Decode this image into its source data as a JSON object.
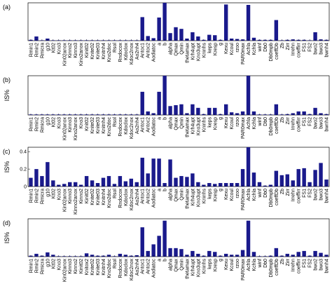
{
  "chart_data": [
    {
      "type": "bar",
      "panel_label": "(a)",
      "ylabel": "",
      "ylim": [
        0,
        0.9
      ],
      "yticks": [],
      "bar_color": "#1a1a8c",
      "categories": [
        "Rmin1",
        "Rmin2",
        "Rmicra",
        "g10",
        "Kt02",
        "Kno3",
        "Kinn02anox",
        "Kinno2",
        "Kinno3",
        "Kinit02anox",
        "Kinit02",
        "Knite02",
        "Knite03",
        "Knitnh4",
        "Kno2doc",
        "Rsol",
        "Rndocox",
        "Kdoclox",
        "Kdoc2nox",
        "Ao2nh4",
        "Antoc1",
        "Antoc2",
        "Aodiatoc",
        "a",
        "b",
        "alpha",
        "Qmax",
        "Qmin",
        "thetamax",
        "Krh4upt",
        "Kno3upt",
        "Kninhs",
        "keps",
        "Kresp",
        "g",
        "Kexu",
        "Kcoul",
        "rzoo",
        "PAR0max",
        "Achla",
        "Kchla",
        "winf",
        "Db0",
        "Db0mpb",
        "coeffDb",
        "Zb",
        "Zirr",
        "Irrehn",
        "coeffirr",
        "FS1",
        "FS2",
        "bwo2",
        "bwo3",
        "bwnh4"
      ],
      "values": [
        0.02,
        0.1,
        0.01,
        0.05,
        0.01,
        0.01,
        0.01,
        0.01,
        0.01,
        0.01,
        0.01,
        0.01,
        0.01,
        0.01,
        0.01,
        0.01,
        0.01,
        0.01,
        0.01,
        0.01,
        0.56,
        0.11,
        0.06,
        0.55,
        0.9,
        0.18,
        0.32,
        0.28,
        0.05,
        0.2,
        0.1,
        0.02,
        0.14,
        0.13,
        0.02,
        0.86,
        0.05,
        0.04,
        0.03,
        0.85,
        0.07,
        0.02,
        0.02,
        0.02,
        0.49,
        0.01,
        0.02,
        0.03,
        0.02,
        0.02,
        0.01,
        0.2,
        0.03,
        0.02
      ],
      "xtick_labels": [
        "Rmin1",
        "Rmin2",
        "Rmicra",
        "g10",
        "Kt02",
        "Kno3",
        "Kin02anox",
        "Kinno2",
        "Kinno3",
        "Kino2anox",
        "Kinit02",
        "Knite02",
        "Knite03",
        "Knitnh4",
        "Kno2doc",
        "Rsol",
        "Rndocox",
        "Kdoclox",
        "Kdoc2nox",
        "Ao2nh4",
        "Antoc1",
        "Antoc2",
        "Aodiatoc",
        "a",
        "b",
        "alpha",
        "Qmax",
        "Qmin",
        "thetamax",
        "Krh4upt",
        "Kno3upt",
        "Kninhs",
        "keps",
        "Kresp",
        "g",
        "Kexu",
        "Kcoul",
        "rzoo",
        "PAR0max",
        "Achla",
        "Kchla",
        "winf",
        "Db0",
        "Db0mpb",
        "coeffDb",
        "Zb",
        "Zirr",
        "Irrehn",
        "coeffirr",
        "FS1",
        "FS2",
        "bwo2",
        "bwo3",
        "bwnh4"
      ]
    },
    {
      "type": "bar",
      "panel_label": "(b)",
      "ylabel": "IS%",
      "ylim": [
        0,
        0.22
      ],
      "yticks": [],
      "bar_color": "#1a1a8c",
      "values": [
        0.003,
        0.003,
        0.003,
        0.003,
        0.003,
        0.003,
        0.003,
        0.003,
        0.003,
        0.003,
        0.003,
        0.003,
        0.003,
        0.003,
        0.003,
        0.003,
        0.003,
        0.003,
        0.003,
        0.003,
        0.13,
        0.02,
        0.01,
        0.13,
        0.22,
        0.05,
        0.055,
        0.06,
        0.01,
        0.06,
        0.04,
        0.005,
        0.04,
        0.04,
        0.005,
        0.06,
        0.015,
        0.01,
        0.02,
        0.22,
        0.02,
        0.003,
        0.003,
        0.003,
        0.06,
        0.003,
        0.005,
        0.01,
        0.02,
        0.02,
        0.005,
        0.04,
        0.01,
        0.005
      ],
      "xtick_labels": [
        "Rmin1",
        "Rmin2",
        "Rmicra",
        "g10",
        "Kt02",
        "Kno3",
        "Kin02anox",
        "Kinno3",
        "Kino2anox",
        "Kno3",
        "Knit02",
        "Knite02",
        "Knite03",
        "Knitnh4",
        "Kno2doc",
        "Rsol",
        "Rndocox",
        "Kdoclox",
        "Kdoc2nox",
        "Ao2nh4",
        "Antoc1",
        "Antoc2",
        "Aodiatoc",
        "a",
        "b",
        "alpha",
        "Qmax",
        "Qmin",
        "thetamax",
        "Krh4upt",
        "Kno3upt",
        "Kninhs",
        "keps",
        "Kresp",
        "g",
        "Kexu",
        "Kcoul",
        "rzoo",
        "PAR0max",
        "Achla",
        "Kchla",
        "winf",
        "Db0",
        "Db0mpb",
        "coeffDb",
        "Zb",
        "Zirr",
        "Irrehn",
        "coeffirr",
        "FS1",
        "FS2",
        "bwo2",
        "bwo3",
        "bwnh4"
      ]
    },
    {
      "type": "bar",
      "panel_label": "(c)",
      "ylabel": "IS%",
      "ylim": [
        0,
        0.45
      ],
      "yticks": [
        "0.4",
        "0.2",
        "0"
      ],
      "ytick_values": [
        0.4,
        0.2,
        0
      ],
      "bar_color": "#1a1a8c",
      "values": [
        0.1,
        0.2,
        0.12,
        0.28,
        0.07,
        0.02,
        0.03,
        0.05,
        0.05,
        0.02,
        0.12,
        0.07,
        0.04,
        0.1,
        0.12,
        0.03,
        0.12,
        0.06,
        0.09,
        0.05,
        0.33,
        0.15,
        0.32,
        0.32,
        0.04,
        0.31,
        0.1,
        0.12,
        0.11,
        0.15,
        0.05,
        0.02,
        0.04,
        0.03,
        0.04,
        0.04,
        0.04,
        0.04,
        0.2,
        0.45,
        0.16,
        0.05,
        0.01,
        0.02,
        0.18,
        0.13,
        0.14,
        0.07,
        0.2,
        0.21,
        0.05,
        0.19,
        0.27,
        0.08
      ],
      "xtick_labels": [
        "Rmin1",
        "Rmin2",
        "Rmicra",
        "g10",
        "Kt02",
        "Kno3",
        "Kin02anox",
        "Kinno3",
        "Kinno2anox",
        "Kinno2",
        "Kinit02",
        "Knite02",
        "Knite03",
        "Knitnh4",
        "Kno2doc",
        "Rsol",
        "Rndocox",
        "Kdoclox",
        "Kdoc2nox",
        "Ao2nh4",
        "Antoc1",
        "Antoc2",
        "Aodiatoc",
        "a",
        "b",
        "alpha",
        "Qmax",
        "Qmin",
        "thetamax",
        "Krh4upt",
        "Kno3upt",
        "Kninhs",
        "keps",
        "Kresp",
        "g",
        "Kexu",
        "Kcoul",
        "rzoo",
        "PAR0max",
        "Achla",
        "Kchla",
        "winf",
        "Db0",
        "Db0mpb",
        "coeffDb",
        "Zb",
        "Zirr",
        "Irrehn",
        "coeffirr",
        "FS1",
        "FS2",
        "bwo2",
        "bwo3",
        "bwnh4"
      ]
    },
    {
      "type": "bar",
      "panel_label": "(d)",
      "ylabel": "IS%",
      "ylim": [
        0,
        4
      ],
      "yticks": [],
      "bar_color": "#1a1a8c",
      "values": [
        0.1,
        0.3,
        0.1,
        0.45,
        0.2,
        0.05,
        0.05,
        0.05,
        0.05,
        0.05,
        0.35,
        0.2,
        0.1,
        0.1,
        0.2,
        0.05,
        0.3,
        0.2,
        0.1,
        0.15,
        3.1,
        0.6,
        1.3,
        2.2,
        3.8,
        0.9,
        0.9,
        0.8,
        0.2,
        0.6,
        0.3,
        0.1,
        0.6,
        0.5,
        0.1,
        0.3,
        0.2,
        0.2,
        0.7,
        3.8,
        0.5,
        0.05,
        0.05,
        0.1,
        0.9,
        0.1,
        0.3,
        0.2,
        0.5,
        0.6,
        0.1,
        0.6,
        0.4,
        0.2
      ],
      "xtick_labels": [
        "Rmin1",
        "Rmin2",
        "Rmicra",
        "g10",
        "Kt02",
        "Kno3",
        "Kin02anox",
        "Kinno3",
        "Kinno2",
        "Kinit02",
        "Knitox2",
        "Knite02",
        "Knite03",
        "Knitnh4",
        "Kno2doc",
        "Rsol",
        "Rndocox",
        "Kdoclox",
        "Kdoc2nox",
        "Ao2nh4",
        "Antoc1",
        "Antoc2",
        "Aodiatoc",
        "a",
        "b",
        "alpha",
        "Qmax",
        "Qmin",
        "thetamax",
        "Krh4upt",
        "Kno3upt",
        "Kninhs",
        "keps",
        "Kresp",
        "g",
        "Kexu",
        "Kcoul",
        "rzoo",
        "PAR0max",
        "Achla",
        "Kchla",
        "winf",
        "Db0",
        "Db0mpb",
        "coeffDb",
        "Zb",
        "Zirr",
        "Irrehn",
        "coeffirr",
        "FS1",
        "FS2",
        "bwo2",
        "bwo3",
        "bwnh4"
      ]
    }
  ]
}
